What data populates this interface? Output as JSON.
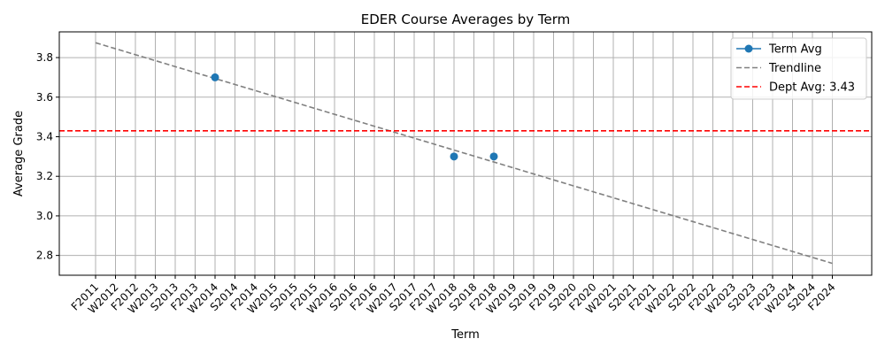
{
  "chart_data": {
    "type": "line",
    "title": "EDER Course Averages by Term",
    "xlabel": "Term",
    "ylabel": "Average Grade",
    "categories": [
      "F2011",
      "W2012",
      "F2012",
      "W2013",
      "S2013",
      "F2013",
      "W2014",
      "S2014",
      "F2014",
      "W2015",
      "S2015",
      "F2015",
      "W2016",
      "S2016",
      "F2016",
      "W2017",
      "S2017",
      "F2017",
      "W2018",
      "S2018",
      "F2018",
      "W2019",
      "S2019",
      "F2019",
      "S2020",
      "F2020",
      "W2021",
      "S2021",
      "F2021",
      "W2022",
      "S2022",
      "F2022",
      "W2023",
      "S2023",
      "F2023",
      "W2024",
      "S2024",
      "F2024"
    ],
    "ylim": [
      2.7,
      3.93
    ],
    "yticks": [
      2.8,
      3.0,
      3.2,
      3.4,
      3.6,
      3.8
    ],
    "ytick_labels": [
      "2.8",
      "3.0",
      "3.2",
      "3.4",
      "3.6",
      "3.8"
    ],
    "grid": true,
    "legend_position": "top-right",
    "series": [
      {
        "name": "Term Avg",
        "style": "line-marker",
        "color": "#1f77b4",
        "points": [
          {
            "x": "W2014",
            "y": 3.7
          },
          {
            "x": "W2018",
            "y": 3.3
          },
          {
            "x": "F2018",
            "y": 3.3
          }
        ]
      },
      {
        "name": "Trendline",
        "style": "dashed",
        "color": "#808080",
        "points": [
          {
            "x": "F2011",
            "y": 3.875
          },
          {
            "x": "F2024",
            "y": 2.76
          }
        ]
      },
      {
        "name": "Dept Avg: 3.43",
        "style": "dashed-hline",
        "color": "#ff0000",
        "value": 3.43
      }
    ]
  }
}
